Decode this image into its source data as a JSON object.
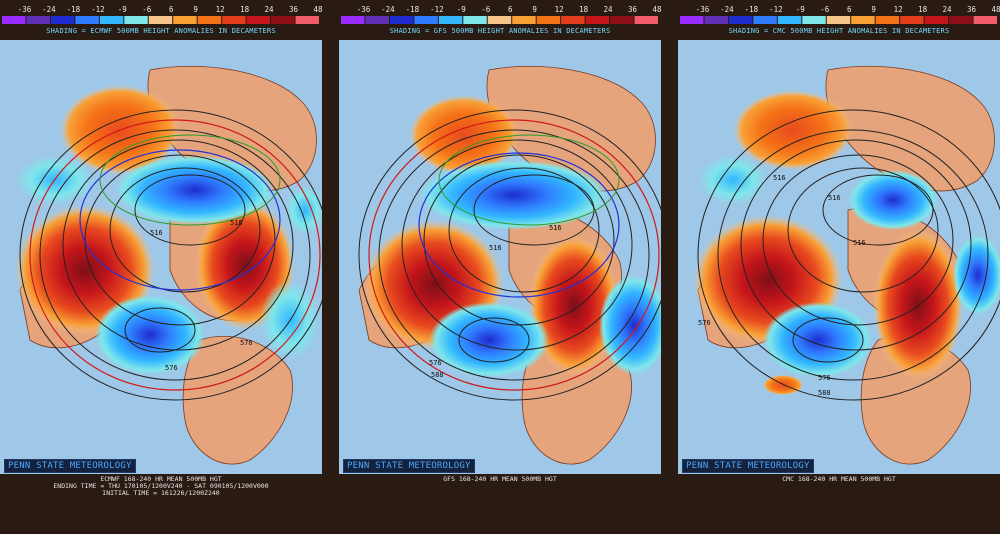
{
  "colorbar": {
    "ticks": [
      "-36",
      "-24",
      "-18",
      "-12",
      "-9",
      "-6",
      "6",
      "9",
      "12",
      "18",
      "24",
      "36",
      "48"
    ],
    "colors": [
      "#9b2cff",
      "#5f2fb6",
      "#1e2ccf",
      "#2f7cff",
      "#32b7ff",
      "#7fe6ea",
      "#f6c489",
      "#f9a035",
      "#f57317",
      "#e33c1b",
      "#c5151b",
      "#8c0f18",
      "#f05c6a"
    ]
  },
  "panels": [
    {
      "shading_label": "SHADING = ECMWF 500MB HEIGHT ANOMALIES IN DECAMETERS",
      "contour_labels": [
        "516",
        "516",
        "576",
        "576"
      ],
      "credit": "PENN STATE METEOROLOGY",
      "caption_line1": "ECMWF 168-240 HR MEAN 500MB HGT",
      "caption_line2": "ENDING TIME = THU 170105/1200V240 - SAT 090105/1200V000",
      "caption_line3": "INITIAL TIME = 161226/1200Z240"
    },
    {
      "shading_label": "SHADING = GFS 500MB HEIGHT ANOMALIES IN DECAMETERS",
      "contour_labels": [
        "516",
        "516",
        "576",
        "588"
      ],
      "credit": "PENN STATE METEOROLOGY",
      "caption_line1": "GFS 168-240 HR MEAN 500MB HGT"
    },
    {
      "shading_label": "SHADING = CMC 500MB HEIGHT ANOMALIES IN DECAMETERS",
      "contour_labels": [
        "516",
        "516",
        "516",
        "576",
        "576",
        "588"
      ],
      "credit": "PENN STATE METEOROLOGY",
      "caption_line1": "CMC 168-240 HR MEAN 500MB HGT"
    }
  ]
}
